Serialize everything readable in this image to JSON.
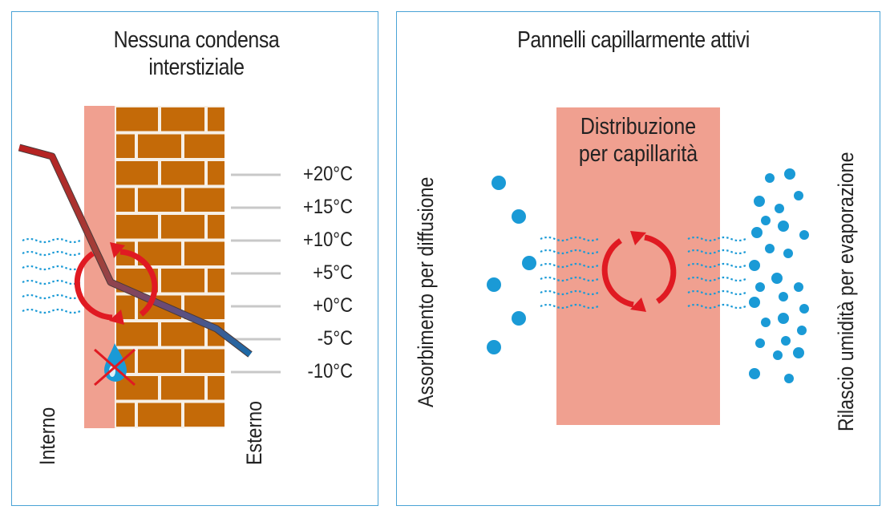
{
  "left_panel": {
    "title_line1": "Nessuna condensa",
    "title_line2": "interstiziale",
    "temperatures": [
      "+20°C",
      "+15°C",
      "+10°C",
      "+5°C",
      "+0°C",
      "-5°C",
      "-10°C"
    ],
    "interior_label": "Interno",
    "exterior_label": "Esterno"
  },
  "right_panel": {
    "title": "Pannelli capillarmente attivi",
    "center_line1": "Distribuzione",
    "center_line2": "per capillarità",
    "left_vertical_label": "Assorbimento per diffusione",
    "right_vertical_label": "Rilascio umidità per evaporazione"
  },
  "colors": {
    "panel_border": "#4aa3d6",
    "insulation": "#f0a090",
    "brick": "#c46a08",
    "mortar": "#f6efe6",
    "arrow_red": "#e01a22",
    "droplet_blue": "#1a9ad6",
    "temp_line_grey": "#c8c8c8"
  }
}
